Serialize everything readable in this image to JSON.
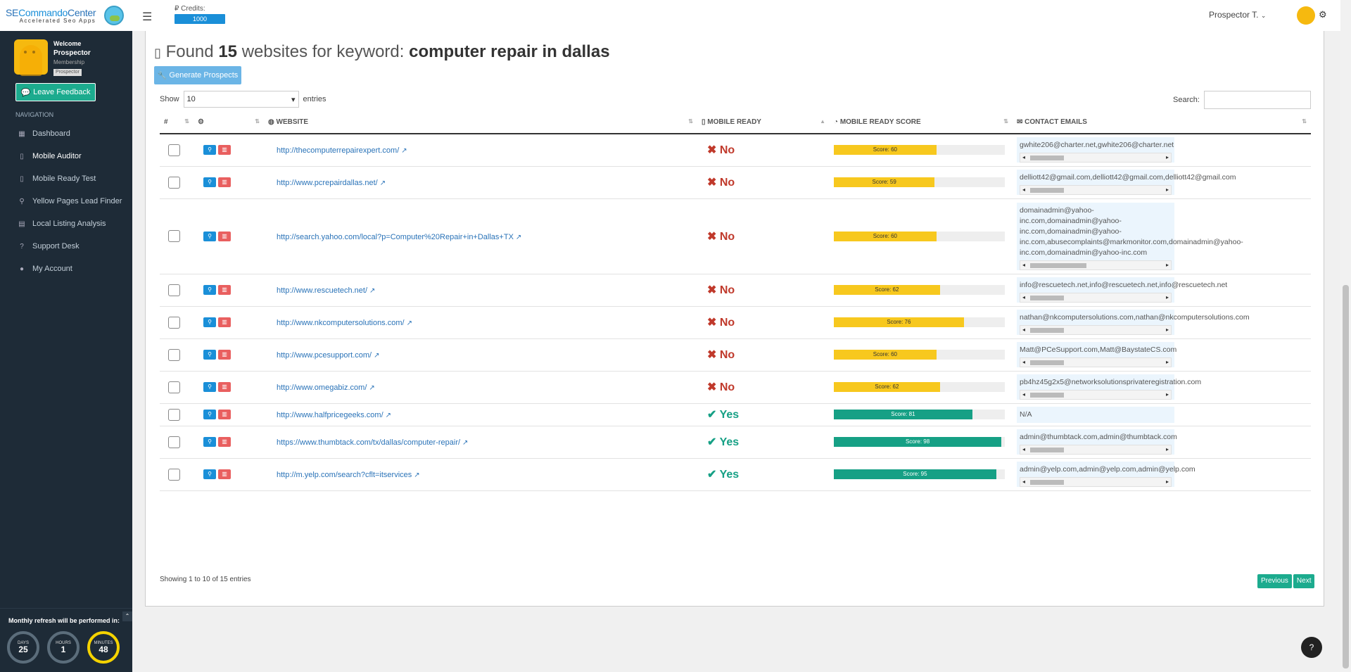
{
  "logo": {
    "text_a": "SE",
    "text_b": "Commando",
    "text_c": "Center",
    "subtitle": "Accelerated Seo Apps"
  },
  "profile": {
    "welcome": "Welcome",
    "name": "Prospector",
    "membership": "Membership",
    "badge": "Prospector"
  },
  "feedback_label": "Leave Feedback",
  "nav": {
    "title": "NAVIGATION",
    "items": [
      {
        "label": "Dashboard",
        "icon": "dashboard-icon",
        "glyph": "▦"
      },
      {
        "label": "Mobile Auditor",
        "icon": "mobile-icon",
        "glyph": "▯"
      },
      {
        "label": "Mobile Ready Test",
        "icon": "mobile-icon",
        "glyph": "▯"
      },
      {
        "label": "Yellow Pages Lead Finder",
        "icon": "search-icon",
        "glyph": "⚲"
      },
      {
        "label": "Local Listing Analysis",
        "icon": "chart-icon",
        "glyph": "▤"
      },
      {
        "label": "Support Desk",
        "icon": "help-icon",
        "glyph": "?"
      },
      {
        "label": "My Account",
        "icon": "user-icon",
        "glyph": "●"
      }
    ]
  },
  "refresh": {
    "title": "Monthly refresh will be performed in:",
    "days_label": "DAYS",
    "days": "25",
    "hours_label": "HOURS",
    "hours": "1",
    "minutes_label": "MINUTES",
    "minutes": "48"
  },
  "topbar": {
    "credits_label": "Credits:",
    "credits": "1000",
    "user": "Prospector T."
  },
  "heading": {
    "prefix": "Found",
    "count": "15",
    "middle": "websites for keyword:",
    "keyword": "computer repair in dallas"
  },
  "generate_label": "Generate Prospects",
  "show": {
    "label": "Show",
    "value": "10",
    "suffix": "entries"
  },
  "search_label": "Search:",
  "columns": {
    "num": "#",
    "website": "WEBSITE",
    "mobile_ready": "MOBILE READY",
    "score": "MOBILE READY SCORE",
    "emails": "CONTACT EMAILS"
  },
  "rows": [
    {
      "url": "http://thecomputerrepairexpert.com/",
      "ready": "No",
      "score": 60,
      "score_label": "Score: 60",
      "email": "gwhite206@charter.net,gwhite206@charter.net",
      "scroll": true
    },
    {
      "url": "http://www.pcrepairdallas.net/",
      "ready": "No",
      "score": 59,
      "score_label": "Score: 59",
      "email": "delliott42@gmail.com,delliott42@gmail.com,delliott42@gmail.com",
      "scroll": true
    },
    {
      "url": "http://search.yahoo.com/local?p=Computer%20Repair+in+Dallas+TX",
      "ready": "No",
      "score": 60,
      "score_label": "Score: 60",
      "email": "domainadmin@yahoo-inc.com,domainadmin@yahoo-inc.com,domainadmin@yahoo-inc.com,abusecomplaints@markmonitor.com,domainadmin@yahoo-inc.com,domainadmin@yahoo-inc.com",
      "scroll": true,
      "multi": true
    },
    {
      "url": "http://www.rescuetech.net/",
      "ready": "No",
      "score": 62,
      "score_label": "Score: 62",
      "email": "info@rescuetech.net,info@rescuetech.net,info@rescuetech.net",
      "scroll": true
    },
    {
      "url": "http://www.nkcomputersolutions.com/",
      "ready": "No",
      "score": 76,
      "score_label": "Score: 76",
      "email": "nathan@nkcomputersolutions.com,nathan@nkcomputersolutions.com",
      "scroll": true
    },
    {
      "url": "http://www.pcesupport.com/",
      "ready": "No",
      "score": 60,
      "score_label": "Score: 60",
      "email": "Matt@PCeSupport.com,Matt@BaystateCS.com",
      "scroll": true
    },
    {
      "url": "http://www.omegabiz.com/",
      "ready": "No",
      "score": 62,
      "score_label": "Score: 62",
      "email": "pb4hz45g2x5@networksolutionsprivateregistration.com",
      "scroll": true
    },
    {
      "url": "http://www.halfpricegeeks.com/",
      "ready": "Yes",
      "score": 81,
      "score_label": "Score: 81",
      "email": "N/A",
      "scroll": false
    },
    {
      "url": "https://www.thumbtack.com/tx/dallas/computer-repair/",
      "ready": "Yes",
      "score": 98,
      "score_label": "Score: 98",
      "email": "admin@thumbtack.com,admin@thumbtack.com",
      "scroll": true
    },
    {
      "url": "http://m.yelp.com/search?cflt=itservices",
      "ready": "Yes",
      "score": 95,
      "score_label": "Score: 95",
      "email": "admin@yelp.com,admin@yelp.com,admin@yelp.com",
      "scroll": true
    }
  ],
  "footer_info": "Showing 1 to 10 of 15 entries",
  "pager": {
    "previous": "Previous",
    "next": "Next"
  },
  "colors": {
    "sidebar": "#1e2b37",
    "accent": "#1cab8e",
    "blue": "#1a8fd8",
    "no": "#c0392b",
    "yes": "#16a085",
    "score_yellow": "#f7c81e"
  }
}
